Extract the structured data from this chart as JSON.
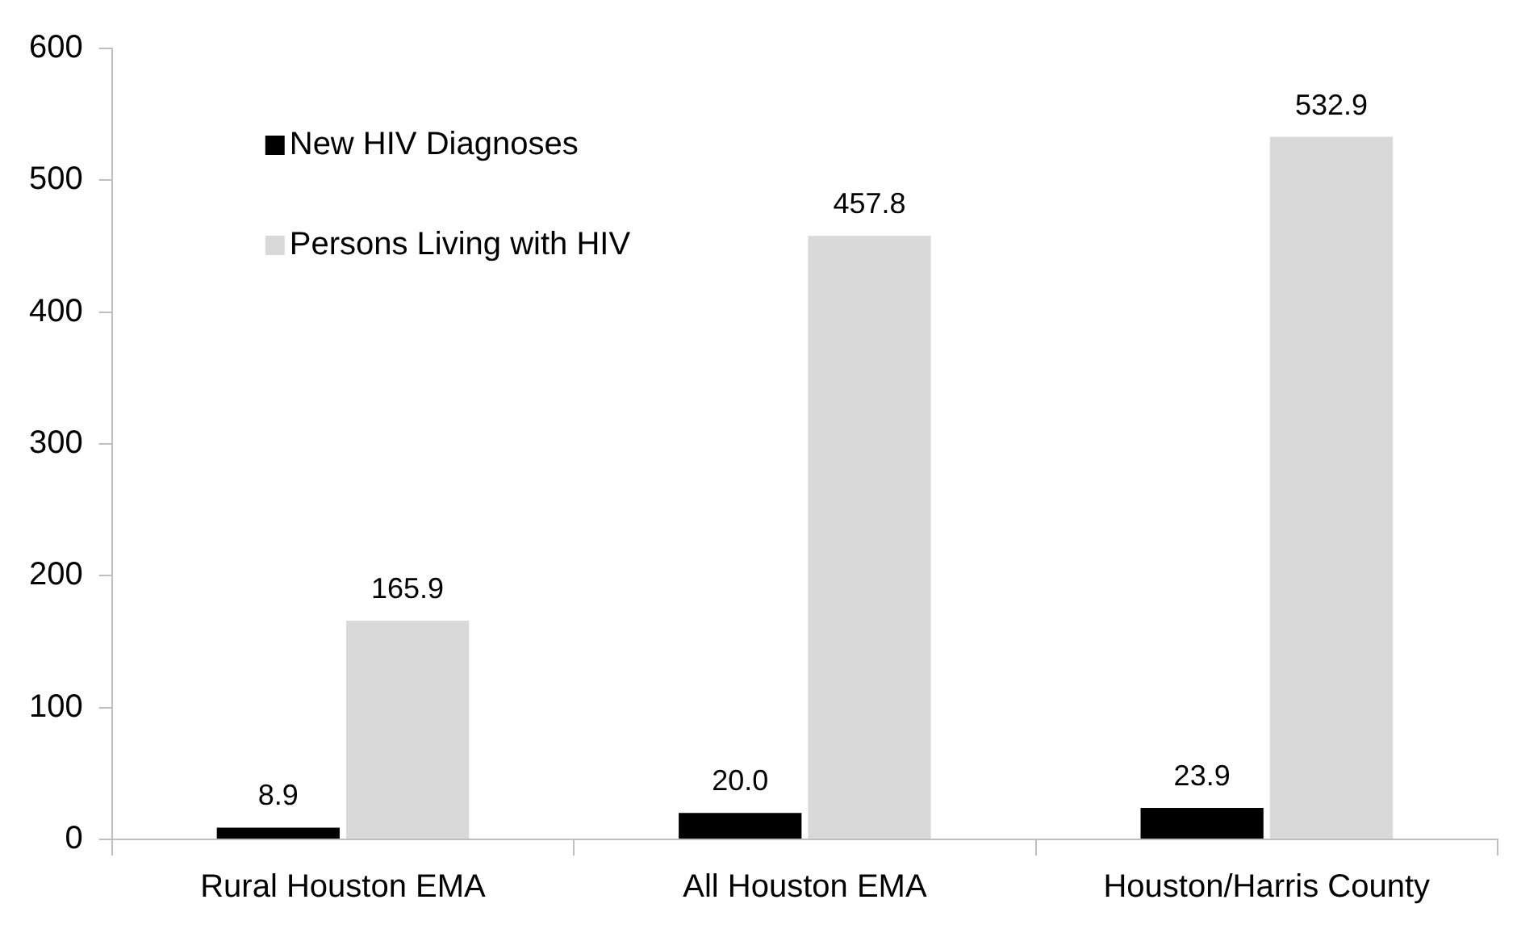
{
  "chart_data": {
    "type": "bar",
    "categories": [
      "Rural Houston EMA",
      "All Houston EMA",
      "Houston/Harris County"
    ],
    "series": [
      {
        "name": "New HIV Diagnoses",
        "color": "#000000",
        "values": [
          8.9,
          20.0,
          23.9
        ]
      },
      {
        "name": "Persons Living with HIV",
        "color": "#d9d9d9",
        "values": [
          165.9,
          457.8,
          532.9
        ]
      }
    ],
    "ylim": [
      0,
      600
    ],
    "yticks": [
      0,
      100,
      200,
      300,
      400,
      500,
      600
    ],
    "grid": false,
    "legend": "top left",
    "value_labels": [
      [
        "8.9",
        "20.0",
        "23.9"
      ],
      [
        "165.9",
        "457.8",
        "532.9"
      ]
    ]
  }
}
